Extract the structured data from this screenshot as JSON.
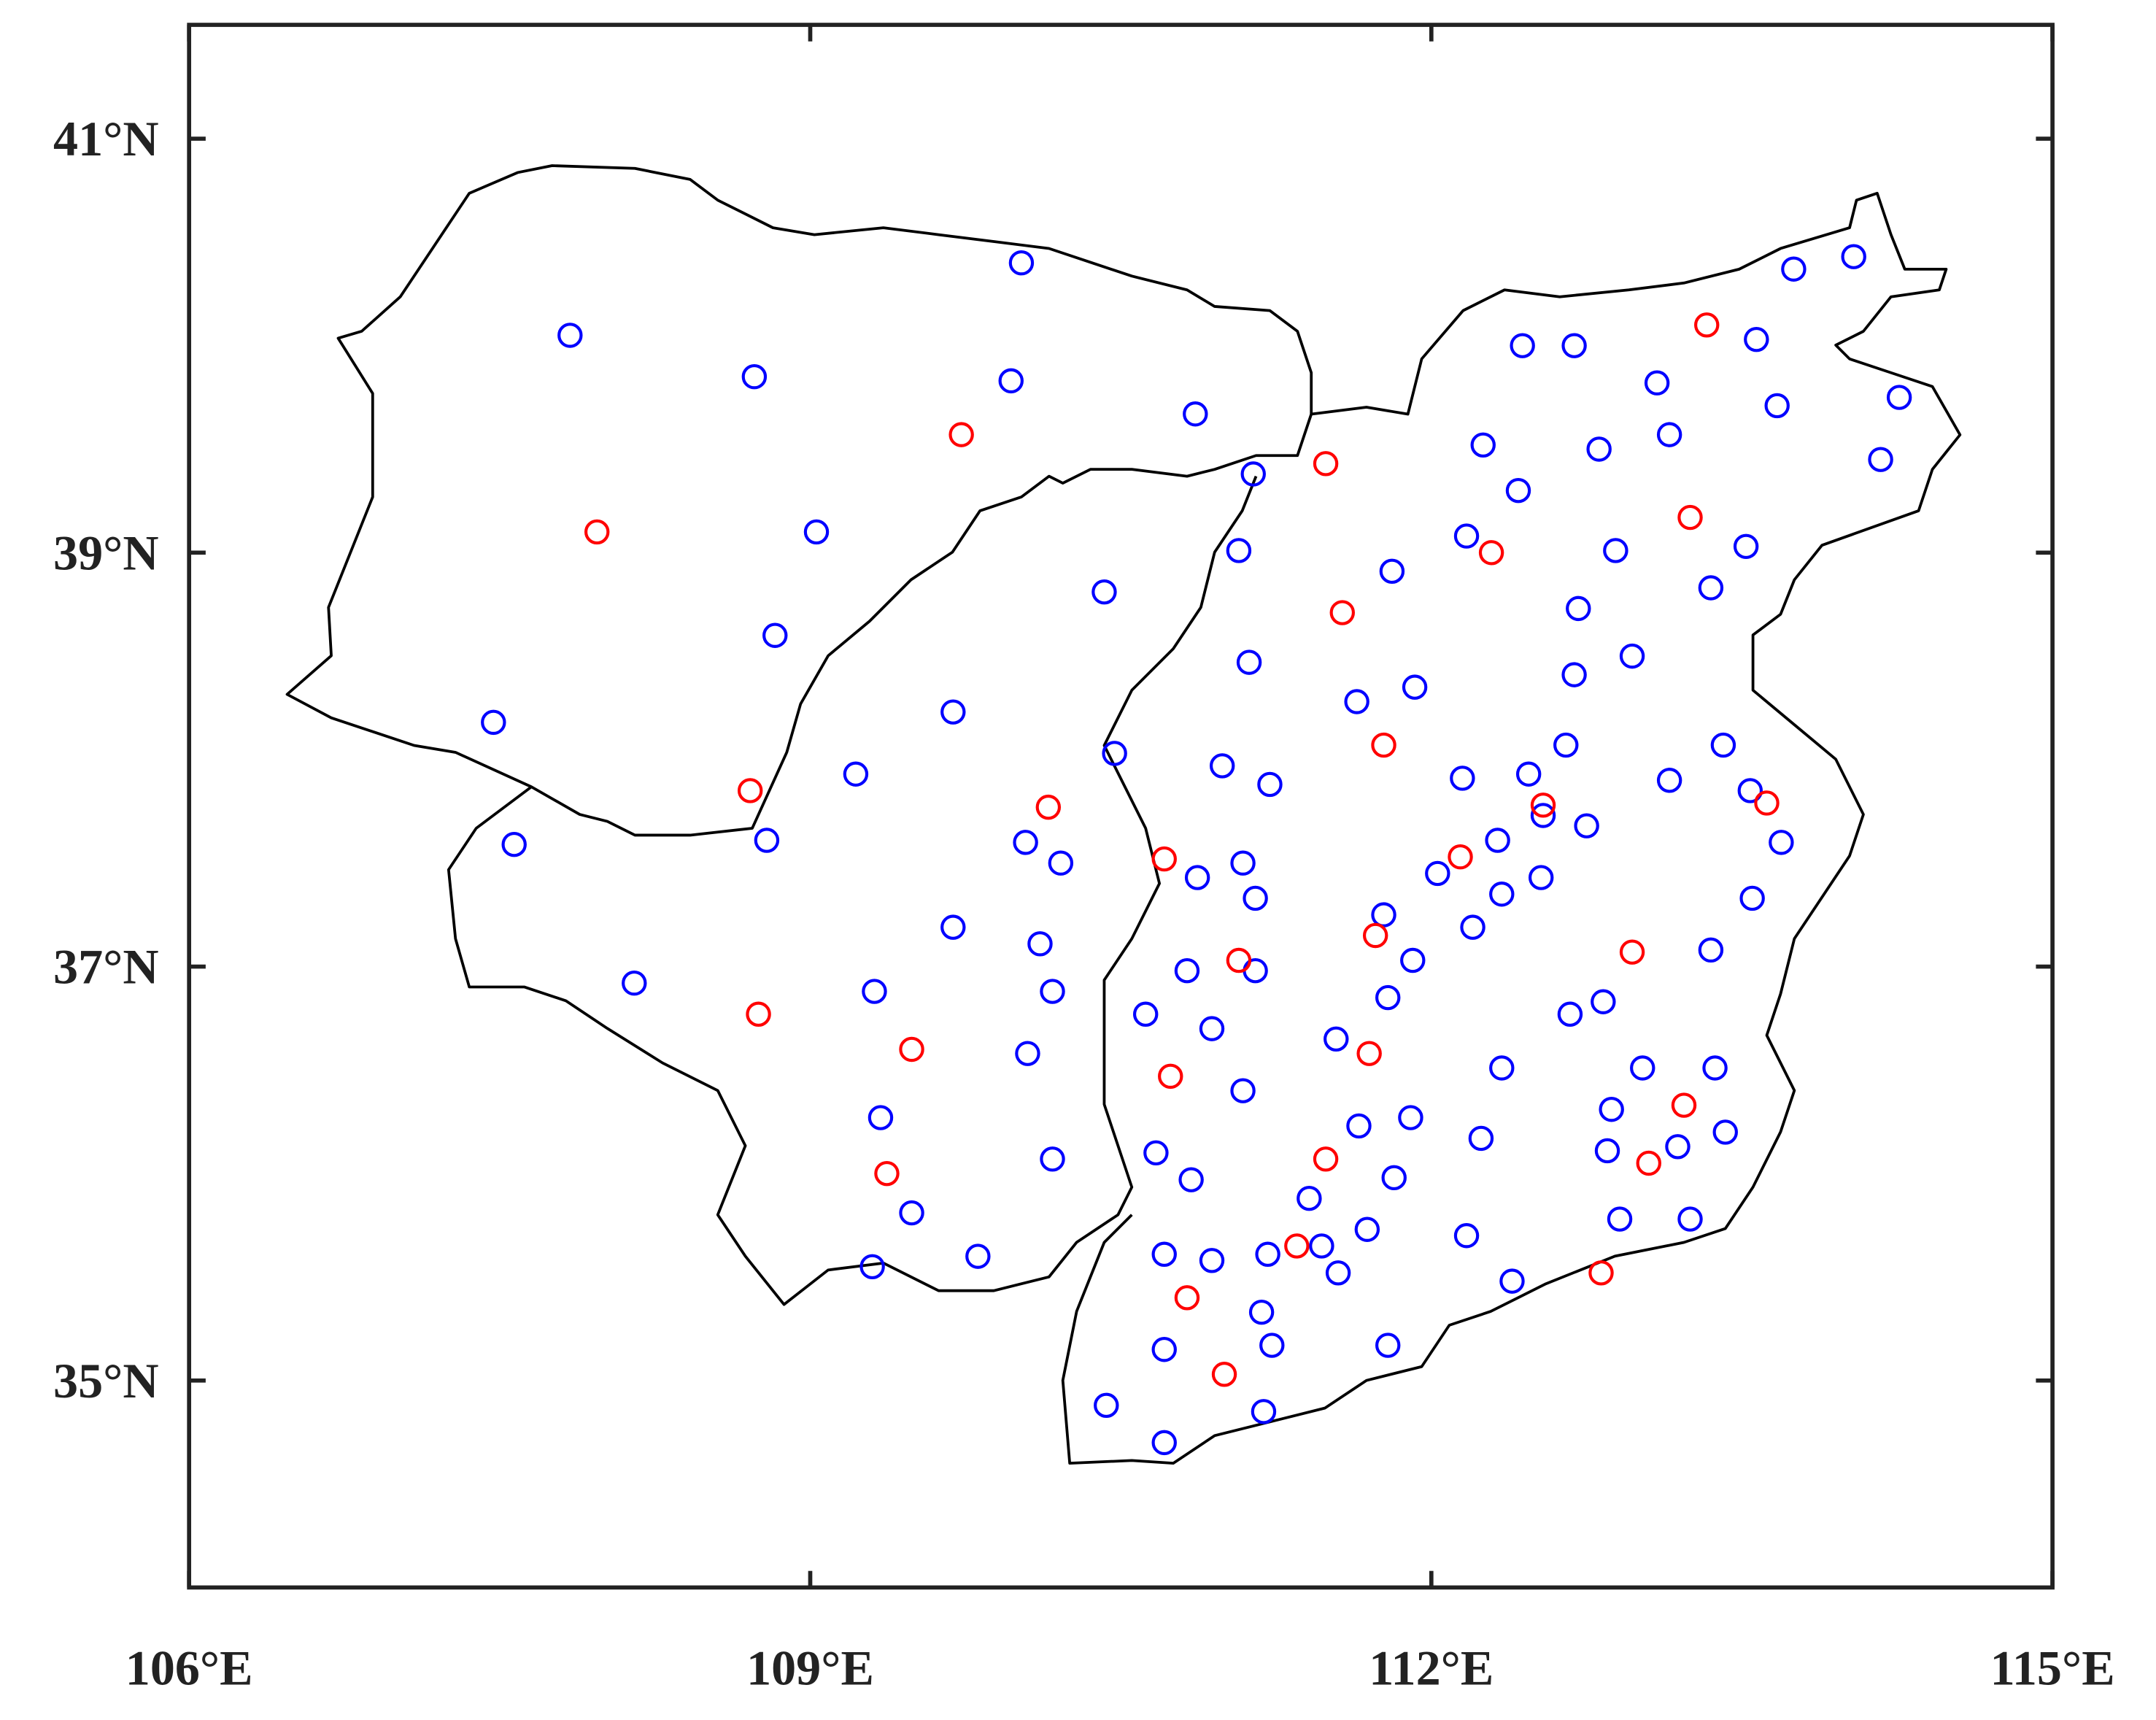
{
  "chart_data": {
    "type": "scatter",
    "xlim": [
      106,
      115
    ],
    "ylim": [
      34,
      41.55
    ],
    "xticks": [
      {
        "value": 106,
        "label": "106°E"
      },
      {
        "value": 109,
        "label": "109°E"
      },
      {
        "value": 112,
        "label": "112°E"
      },
      {
        "value": 115,
        "label": "115°E"
      }
    ],
    "yticks": [
      {
        "value": 35,
        "label": "35°N"
      },
      {
        "value": 37,
        "label": "37°N"
      },
      {
        "value": 39,
        "label": "39°N"
      },
      {
        "value": 41,
        "label": "41°N"
      }
    ],
    "series": [
      {
        "color": "#0000ff",
        "x": [
          110.02,
          107.84,
          108.73,
          109.97,
          110.86,
          111.14,
          109.03,
          111.07,
          110.42,
          108.83,
          107.47,
          109.69,
          110.47,
          109.22,
          108.79,
          107.57,
          110.04,
          110.21,
          109.69,
          110.11,
          108.15,
          109.31,
          110.17,
          110.05,
          109.34,
          110.17,
          109.49,
          109.81,
          109.3,
          114.04,
          113.75,
          112.44,
          112.69,
          113.57,
          113.09,
          113.67,
          114.26,
          113.15,
          112.25,
          112.81,
          114.17,
          112.42,
          112.17,
          111.81,
          112.89,
          113.52,
          113.35,
          112.71,
          111.12,
          112.97,
          112.69,
          111.92,
          111.64,
          113.41,
          112.65,
          110.99,
          112.15,
          112.47,
          111.22,
          113.15,
          113.54,
          112.54,
          112.75,
          112.32,
          113.69,
          111.09,
          110.87,
          112.03,
          112.53,
          111.15,
          112.34,
          113.55,
          111.77,
          112.2,
          113.35,
          111.91,
          110.82,
          111.15,
          111.79,
          112.83,
          110.62,
          112.67,
          110.94,
          111.54,
          112.34,
          113.02,
          113.37,
          111.09,
          112.87,
          111.9,
          111.65,
          112.24,
          113.42,
          113.19,
          112.85,
          110.67,
          111.82,
          110.84,
          111.41,
          112.91,
          113.25,
          111.69,
          112.17,
          110.71,
          111.21,
          111.47,
          110.94,
          111.55,
          112.39,
          111.18,
          110.71,
          111.23,
          111.79,
          110.43,
          111.19,
          110.71
        ],
        "y": [
          40.4,
          40.05,
          39.85,
          39.83,
          39.67,
          39.38,
          39.1,
          39.01,
          38.81,
          38.6,
          38.18,
          38.23,
          38.03,
          37.93,
          37.61,
          37.59,
          37.6,
          37.5,
          37.19,
          37.11,
          36.92,
          36.88,
          36.88,
          36.58,
          36.27,
          36.07,
          35.81,
          35.6,
          35.55,
          40.43,
          40.37,
          40.0,
          40.0,
          40.03,
          39.82,
          39.71,
          39.75,
          39.57,
          39.52,
          39.5,
          39.45,
          39.3,
          39.08,
          38.91,
          39.01,
          39.03,
          38.83,
          38.73,
          38.47,
          38.5,
          38.41,
          38.35,
          38.28,
          38.07,
          38.07,
          37.97,
          37.91,
          37.93,
          37.88,
          37.9,
          37.85,
          37.73,
          37.68,
          37.61,
          37.6,
          37.5,
          37.43,
          37.45,
          37.43,
          37.33,
          37.35,
          37.33,
          37.25,
          37.19,
          37.08,
          37.03,
          36.98,
          36.98,
          36.85,
          36.83,
          36.77,
          36.77,
          36.7,
          36.65,
          36.51,
          36.51,
          36.51,
          36.4,
          36.31,
          36.27,
          36.23,
          36.17,
          36.2,
          36.13,
          36.11,
          36.1,
          35.98,
          35.97,
          35.88,
          35.78,
          35.78,
          35.73,
          35.7,
          35.61,
          35.61,
          35.65,
          35.58,
          35.52,
          35.48,
          35.33,
          35.15,
          35.17,
          35.17,
          34.88,
          34.85,
          34.7
        ]
      },
      {
        "color": "#ff0000",
        "x": [
          109.73,
          107.97,
          108.71,
          110.15,
          110.71,
          108.75,
          109.49,
          109.37,
          111.49,
          113.33,
          113.25,
          112.29,
          111.57,
          111.77,
          112.54,
          112.14,
          113.62,
          111.07,
          111.73,
          112.97,
          110.74,
          111.7,
          113.22,
          111.49,
          113.05,
          111.35,
          110.82,
          112.82,
          111.0
        ],
        "y": [
          39.57,
          39.1,
          37.85,
          37.77,
          37.52,
          36.77,
          36.6,
          36.0,
          39.43,
          40.1,
          39.17,
          39.0,
          38.71,
          38.07,
          37.78,
          37.53,
          37.79,
          37.03,
          37.15,
          37.07,
          36.47,
          36.58,
          36.33,
          36.07,
          36.05,
          35.65,
          35.4,
          35.52,
          35.03
        ]
      }
    ]
  }
}
